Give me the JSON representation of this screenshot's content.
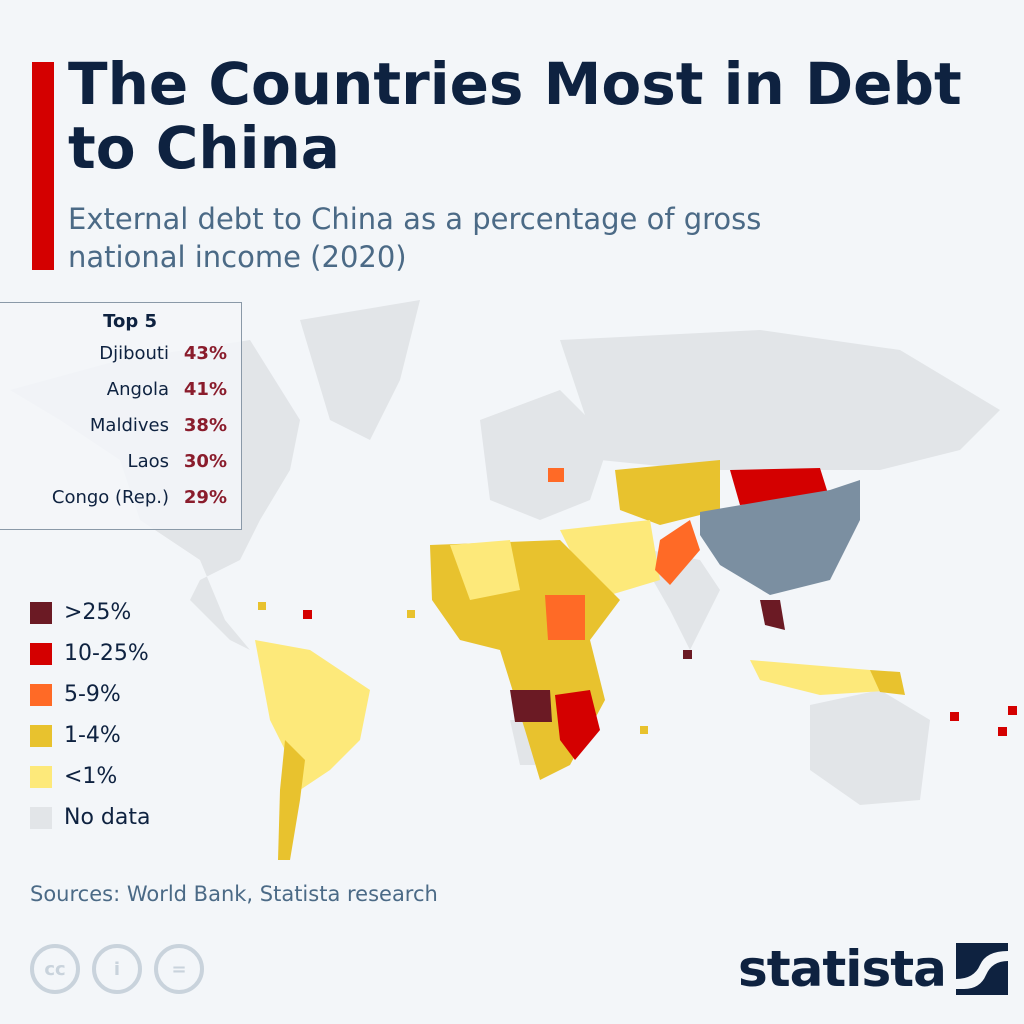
{
  "title": "The Countries Most in Debt to China",
  "subtitle": "External debt to China as a percentage of gross national income (2020)",
  "top5": {
    "heading": "Top 5",
    "items": [
      {
        "country": "Djibouti",
        "value": "43%"
      },
      {
        "country": "Angola",
        "value": "41%"
      },
      {
        "country": "Maldives",
        "value": "38%"
      },
      {
        "country": "Laos",
        "value": "30%"
      },
      {
        "country": "Congo (Rep.)",
        "value": "29%"
      }
    ]
  },
  "legend": [
    {
      "label": ">25%",
      "color": "#6b1a24"
    },
    {
      "label": "10-25%",
      "color": "#d40000"
    },
    {
      "label": "5-9%",
      "color": "#ff6a26"
    },
    {
      "label": "1-4%",
      "color": "#e8c22e"
    },
    {
      "label": "<1%",
      "color": "#fde97a"
    },
    {
      "label": "No data",
      "color": "#e2e5e8"
    }
  ],
  "china_color": "#7b8fa1",
  "accent": "#d40000",
  "source": "Sources: World Bank, Statista research",
  "license_icons": [
    "cc-icon",
    "attribution-icon",
    "no-derivatives-icon"
  ],
  "brand": "statista"
}
